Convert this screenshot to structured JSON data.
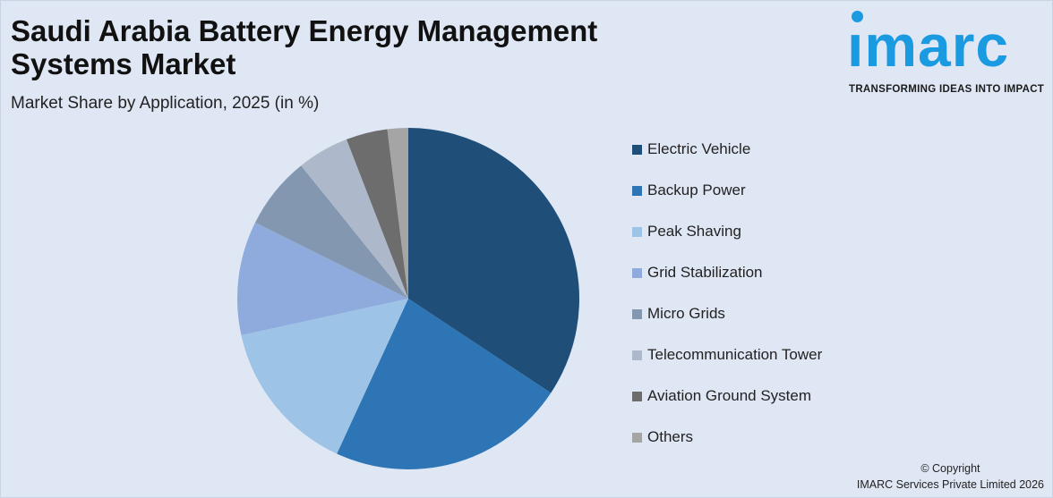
{
  "header": {
    "title_line1": "Saudi Arabia Battery Energy Management",
    "title_line2": "Systems Market",
    "subtitle": "Market Share by Application, 2025 (in %)"
  },
  "logo": {
    "text": "ımarc",
    "tagline": "TRANSFORMING IDEAS INTO IMPACT",
    "color": "#1a9ae0"
  },
  "footer": {
    "copyright": "© Copyright",
    "company": "IMARC Services Private Limited 2026"
  },
  "chart_data": {
    "type": "pie",
    "title": "Saudi Arabia Battery Energy Management Systems Market",
    "subtitle": "Market Share by Application, 2025 (in %)",
    "legend_position": "right",
    "start_angle": "top, clockwise",
    "slices": [
      {
        "label": "Electric Vehicle",
        "value": 35,
        "color": "#1f4e79"
      },
      {
        "label": "Backup Power",
        "value": 23,
        "color": "#2e75b6"
      },
      {
        "label": "Peak Shaving",
        "value": 15,
        "color": "#9dc3e6"
      },
      {
        "label": "Grid Stabilization",
        "value": 11,
        "color": "#8faadc"
      },
      {
        "label": "Micro Grids",
        "value": 7,
        "color": "#8497b0"
      },
      {
        "label": "Telecommunication Tower",
        "value": 5,
        "color": "#adb9ca"
      },
      {
        "label": "Aviation Ground System",
        "value": 4,
        "color": "#6d6d6d"
      },
      {
        "label": "Others",
        "value": 2,
        "color": "#a5a5a5"
      }
    ]
  }
}
